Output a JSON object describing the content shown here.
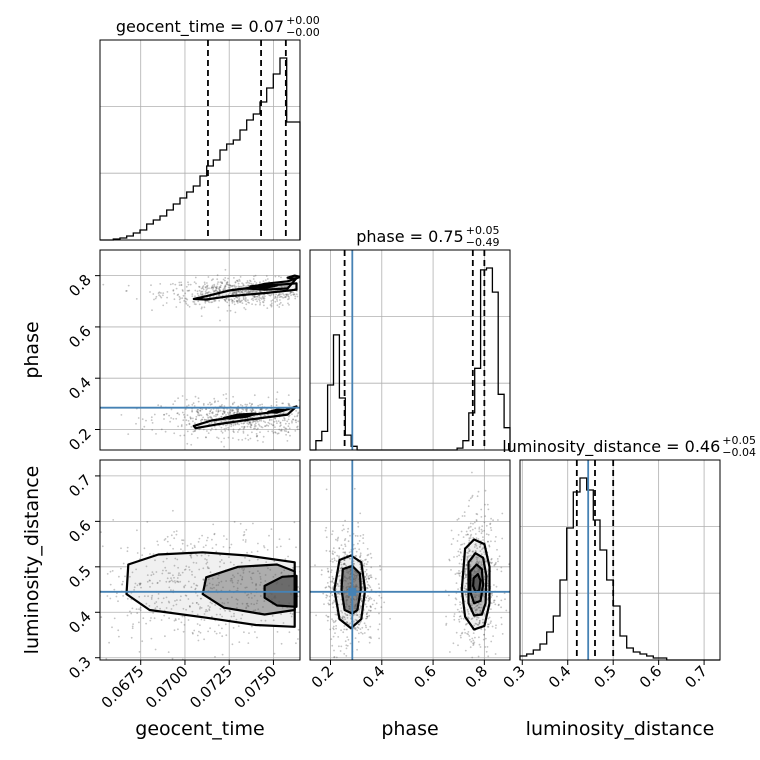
{
  "chart_data": {
    "type": "scatter",
    "variant": "corner-plot",
    "parameters": [
      "geocent_time",
      "phase",
      "luminosity_distance"
    ],
    "axis_labels": {
      "x": [
        "geocent_time",
        "phase",
        "luminosity_distance"
      ],
      "y": [
        "phase",
        "luminosity_distance"
      ]
    },
    "titles": [
      {
        "name": "geocent_time",
        "eq": " = 0.07",
        "plus": "+0.00",
        "minus": "−0.00"
      },
      {
        "name": "phase",
        "eq": " = 0.75",
        "plus": "+0.05",
        "minus": "−0.49"
      },
      {
        "name": "luminosity_distance",
        "eq": " = 0.46",
        "plus": "+0.05",
        "minus": "−0.04"
      }
    ],
    "ranges": [
      [
        0.0652,
        0.0765
      ],
      [
        0.12,
        0.9
      ],
      [
        0.295,
        0.735
      ]
    ],
    "ticks": {
      "geocent_time": {
        "values": [
          0.0675,
          0.07,
          0.0725,
          0.075
        ],
        "labels": [
          "0.0675",
          "0.0700",
          "0.0725",
          "0.0750"
        ]
      },
      "phase": {
        "values": [
          0.2,
          0.4,
          0.6,
          0.8
        ],
        "labels": [
          "0.2",
          "0.4",
          "0.6",
          "0.8"
        ]
      },
      "luminosity_distance": {
        "values": [
          0.3,
          0.4,
          0.5,
          0.6,
          0.7
        ],
        "labels": [
          "0.3",
          "0.4",
          "0.5",
          "0.6",
          "0.7"
        ]
      }
    },
    "quantiles": {
      "geocent_time": [
        0.0713,
        0.0743,
        0.0757
      ],
      "phase": [
        0.255,
        0.755,
        0.8
      ],
      "luminosity_distance": [
        0.42,
        0.46,
        0.5
      ]
    },
    "truths": {
      "geocent_time": null,
      "phase": 0.285,
      "luminosity_distance": 0.445
    },
    "histograms": {
      "geocent_time": {
        "range": [
          0.0652,
          0.0765
        ],
        "counts": [
          0,
          0,
          0.005,
          0.01,
          0.02,
          0.035,
          0.05,
          0.08,
          0.1,
          0.12,
          0.15,
          0.18,
          0.21,
          0.24,
          0.27,
          0.32,
          0.37,
          0.4,
          0.45,
          0.48,
          0.5,
          0.55,
          0.6,
          0.63,
          0.69,
          0.76,
          0.83,
          0.91,
          0.59,
          0.59
        ]
      },
      "phase": {
        "range": [
          0.12,
          0.9
        ],
        "counts": [
          0,
          0.05,
          0.1,
          0.35,
          0.62,
          0.28,
          0.08,
          0.02,
          0,
          0,
          0,
          0,
          0,
          0,
          0,
          0,
          0,
          0,
          0,
          0,
          0,
          0,
          0,
          0,
          0,
          0.01,
          0.05,
          0.2,
          0.44,
          0.97,
          0.98,
          0.85,
          0.3,
          0.12
        ]
      },
      "luminosity_distance": {
        "range": [
          0.295,
          0.735
        ],
        "counts": [
          0.02,
          0.03,
          0.05,
          0.08,
          0.14,
          0.22,
          0.4,
          0.66,
          0.84,
          0.91,
          0.85,
          0.7,
          0.55,
          0.4,
          0.27,
          0.12,
          0.06,
          0.04,
          0.03,
          0.02,
          0.01,
          0.01,
          0,
          0,
          0,
          0,
          0,
          0,
          0,
          0
        ]
      }
    },
    "contours_2d": [
      {
        "x": "geocent_time",
        "y": "phase",
        "modes": [
          {
            "levels": [
              [
                [
                  0.0705,
                  0.709
                ],
                [
                  0.0712,
                  0.72
                ],
                [
                  0.0725,
                  0.742
                ],
                [
                  0.0745,
                  0.76
                ],
                [
                  0.0763,
                  0.77
                ],
                [
                  0.0763,
                  0.745
                ],
                [
                  0.0745,
                  0.732
                ],
                [
                  0.0725,
                  0.72
                ],
                [
                  0.0712,
                  0.707
                ]
              ],
              [
                [
                  0.0735,
                  0.75
                ],
                [
                  0.0745,
                  0.768
                ],
                [
                  0.0758,
                  0.778
                ],
                [
                  0.0763,
                  0.79
                ],
                [
                  0.0758,
                  0.75
                ],
                [
                  0.0745,
                  0.745
                ]
              ],
              [
                [
                  0.0737,
                  0.758
                ],
                [
                  0.0745,
                  0.765
                ],
                [
                  0.0752,
                  0.762
                ],
                [
                  0.0745,
                  0.752
                ]
              ],
              [
                [
                  0.0758,
                  0.792
                ],
                [
                  0.0762,
                  0.8
                ],
                [
                  0.0765,
                  0.795
                ],
                [
                  0.0762,
                  0.787
                ]
              ]
            ]
          },
          {
            "levels": [
              [
                [
                  0.0705,
                  0.214
                ],
                [
                  0.0715,
                  0.235
                ],
                [
                  0.0735,
                  0.255
                ],
                [
                  0.0755,
                  0.272
                ],
                [
                  0.0763,
                  0.29
                ],
                [
                  0.0758,
                  0.258
                ],
                [
                  0.0738,
                  0.24
                ],
                [
                  0.0718,
                  0.22
                ],
                [
                  0.0706,
                  0.205
                ]
              ],
              [
                [
                  0.0722,
                  0.245
                ],
                [
                  0.073,
                  0.258
                ],
                [
                  0.074,
                  0.262
                ],
                [
                  0.0735,
                  0.25
                ],
                [
                  0.0725,
                  0.243
                ]
              ],
              [
                [
                  0.0747,
                  0.268
                ],
                [
                  0.0752,
                  0.277
                ],
                [
                  0.0756,
                  0.276
                ],
                [
                  0.0752,
                  0.266
                ]
              ]
            ]
          }
        ]
      },
      {
        "x": "geocent_time",
        "y": "luminosity_distance",
        "modes": [
          {
            "levels": [
              [
                [
                  0.0668,
                  0.505
                ],
                [
                  0.0685,
                  0.527
                ],
                [
                  0.071,
                  0.532
                ],
                [
                  0.0735,
                  0.525
                ],
                [
                  0.0762,
                  0.51
                ],
                [
                  0.0762,
                  0.368
                ],
                [
                  0.074,
                  0.372
                ],
                [
                  0.0712,
                  0.388
                ],
                [
                  0.068,
                  0.405
                ],
                [
                  0.0667,
                  0.44
                ]
              ],
              [
                [
                  0.0712,
                  0.477
                ],
                [
                  0.073,
                  0.5
                ],
                [
                  0.0752,
                  0.505
                ],
                [
                  0.0762,
                  0.49
                ],
                [
                  0.0762,
                  0.405
                ],
                [
                  0.0745,
                  0.395
                ],
                [
                  0.0722,
                  0.41
                ],
                [
                  0.071,
                  0.44
                ]
              ],
              [
                [
                  0.0745,
                  0.458
                ],
                [
                  0.0755,
                  0.478
                ],
                [
                  0.0763,
                  0.48
                ],
                [
                  0.0763,
                  0.412
                ],
                [
                  0.0752,
                  0.415
                ],
                [
                  0.0745,
                  0.432
                ]
              ]
            ]
          }
        ]
      },
      {
        "x": "phase",
        "y": "luminosity_distance",
        "modes": [
          {
            "levels": [
              [
                [
                  0.235,
                  0.515
                ],
                [
                  0.28,
                  0.525
                ],
                [
                  0.32,
                  0.51
                ],
                [
                  0.335,
                  0.45
                ],
                [
                  0.32,
                  0.385
                ],
                [
                  0.28,
                  0.365
                ],
                [
                  0.235,
                  0.385
                ],
                [
                  0.215,
                  0.45
                ]
              ],
              [
                [
                  0.248,
                  0.495
                ],
                [
                  0.285,
                  0.502
                ],
                [
                  0.315,
                  0.485
                ],
                [
                  0.318,
                  0.45
                ],
                [
                  0.305,
                  0.405
                ],
                [
                  0.285,
                  0.397
                ],
                [
                  0.255,
                  0.405
                ],
                [
                  0.243,
                  0.45
                ]
              ]
            ]
          },
          {
            "levels": [
              [
                [
                  0.725,
                  0.54
                ],
                [
                  0.76,
                  0.56
                ],
                [
                  0.8,
                  0.55
                ],
                [
                  0.82,
                  0.5
                ],
                [
                  0.82,
                  0.42
                ],
                [
                  0.8,
                  0.37
                ],
                [
                  0.76,
                  0.362
                ],
                [
                  0.725,
                  0.39
                ],
                [
                  0.712,
                  0.45
                ]
              ],
              [
                [
                  0.738,
                  0.51
                ],
                [
                  0.765,
                  0.53
                ],
                [
                  0.795,
                  0.52
                ],
                [
                  0.808,
                  0.48
                ],
                [
                  0.805,
                  0.42
                ],
                [
                  0.79,
                  0.395
                ],
                [
                  0.76,
                  0.393
                ],
                [
                  0.738,
                  0.42
                ]
              ],
              [
                [
                  0.745,
                  0.49
                ],
                [
                  0.77,
                  0.505
                ],
                [
                  0.79,
                  0.495
                ],
                [
                  0.795,
                  0.46
                ],
                [
                  0.785,
                  0.425
                ],
                [
                  0.76,
                  0.42
                ],
                [
                  0.745,
                  0.445
                ]
              ],
              [
                [
                  0.758,
                  0.475
                ],
                [
                  0.775,
                  0.484
                ],
                [
                  0.785,
                  0.47
                ],
                [
                  0.78,
                  0.448
                ],
                [
                  0.765,
                  0.445
                ],
                [
                  0.756,
                  0.458
                ]
              ]
            ]
          }
        ]
      }
    ],
    "colors": {
      "line": "#000000",
      "truth": "#4682b4",
      "grid": "#b0b0b0",
      "samples": "#555555"
    }
  }
}
